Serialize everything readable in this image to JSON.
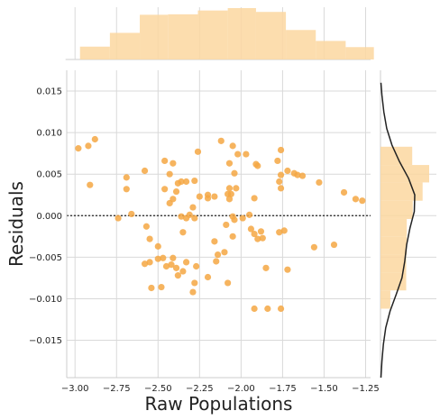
{
  "chart_data": {
    "type": "scatter",
    "title": "",
    "xlabel": "Raw Populations",
    "ylabel": "Residuals",
    "xlim": [
      -3.05,
      -1.22
    ],
    "ylim": [
      -0.0195,
      0.0175
    ],
    "xticks": [
      -3.0,
      -2.75,
      -2.5,
      -2.25,
      -2.0,
      -1.75,
      -1.5,
      -1.25
    ],
    "xtick_labels": [
      "−3.00",
      "−2.75",
      "−2.50",
      "−2.25",
      "−2.00",
      "−1.75",
      "−1.50",
      "−1.25"
    ],
    "yticks": [
      -0.015,
      -0.01,
      -0.005,
      0.0,
      0.005,
      0.01,
      0.015
    ],
    "ytick_labels": [
      "−0.015",
      "−0.010",
      "−0.005",
      "0.000",
      "0.005",
      "0.010",
      "0.015"
    ],
    "grid": true,
    "reference_line": {
      "y": 0.0,
      "style": "dotted"
    },
    "points": [
      [
        -2.98,
        0.0081
      ],
      [
        -2.92,
        0.0084
      ],
      [
        -2.88,
        0.0092
      ],
      [
        -2.91,
        0.0037
      ],
      [
        -2.74,
        -0.0003
      ],
      [
        -2.69,
        0.0046
      ],
      [
        -2.69,
        0.0032
      ],
      [
        -2.66,
        0.0002
      ],
      [
        -2.58,
        0.0054
      ],
      [
        -2.57,
        -0.0013
      ],
      [
        -2.55,
        -0.0028
      ],
      [
        -2.5,
        -0.0037
      ],
      [
        -2.46,
        0.0066
      ],
      [
        -2.43,
        0.005
      ],
      [
        -2.41,
        0.0063
      ],
      [
        -2.38,
        0.0039
      ],
      [
        -2.46,
        0.0032
      ],
      [
        -2.43,
        0.0015
      ],
      [
        -2.41,
        0.002
      ],
      [
        -2.39,
        0.0029
      ],
      [
        -2.36,
        0.0041
      ],
      [
        -2.33,
        0.0041
      ],
      [
        -2.28,
        0.0042
      ],
      [
        -2.36,
        -0.0001
      ],
      [
        -2.33,
        -0.0003
      ],
      [
        -2.31,
        0.0001
      ],
      [
        -2.29,
        0.001
      ],
      [
        -2.28,
        -0.0003
      ],
      [
        -2.26,
        0.0077
      ],
      [
        -2.25,
        0.0023
      ],
      [
        -2.2,
        0.0025
      ],
      [
        -2.2,
        0.0021
      ],
      [
        -2.16,
        0.0023
      ],
      [
        -2.12,
        0.009
      ],
      [
        -2.08,
        0.0026
      ],
      [
        -2.07,
        0.0033
      ],
      [
        -2.07,
        0.002
      ],
      [
        -2.06,
        0.0026
      ],
      [
        -2.03,
        0.0033
      ],
      [
        -2.05,
        0.0084
      ],
      [
        -2.02,
        0.0074
      ],
      [
        -2.04,
        0.0051
      ],
      [
        -2.07,
        0.0063
      ],
      [
        -1.97,
        0.0074
      ],
      [
        -1.91,
        0.0062
      ],
      [
        -1.9,
        0.006
      ],
      [
        -1.92,
        0.0021
      ],
      [
        -2.04,
        -0.0005
      ],
      [
        -2.05,
        -0.0001
      ],
      [
        -1.99,
        -0.0003
      ],
      [
        -1.95,
        0.0001
      ],
      [
        -1.94,
        -0.0016
      ],
      [
        -1.92,
        -0.0022
      ],
      [
        -1.9,
        -0.0028
      ],
      [
        -1.87,
        -0.0027
      ],
      [
        -1.88,
        -0.0019
      ],
      [
        -2.58,
        -0.0058
      ],
      [
        -2.55,
        -0.0056
      ],
      [
        -2.5,
        -0.0052
      ],
      [
        -2.47,
        -0.0051
      ],
      [
        -2.42,
        -0.0059
      ],
      [
        -2.39,
        -0.0063
      ],
      [
        -2.35,
        -0.0067
      ],
      [
        -2.33,
        -0.0056
      ],
      [
        -2.27,
        -0.0061
      ],
      [
        -2.2,
        -0.0074
      ],
      [
        -2.16,
        -0.0031
      ],
      [
        -2.14,
        -0.0047
      ],
      [
        -2.15,
        -0.0055
      ],
      [
        -2.1,
        -0.0044
      ],
      [
        -2.05,
        -0.0025
      ],
      [
        -2.09,
        -0.0011
      ],
      [
        -2.08,
        -0.0081
      ],
      [
        -2.28,
        -0.0081
      ],
      [
        -2.29,
        -0.0092
      ],
      [
        -2.45,
        -0.0061
      ],
      [
        -2.54,
        -0.0087
      ],
      [
        -2.48,
        -0.0086
      ],
      [
        -2.41,
        -0.0051
      ],
      [
        -2.38,
        -0.0072
      ],
      [
        -2.35,
        -0.002
      ],
      [
        -1.85,
        -0.0063
      ],
      [
        -1.77,
        -0.002
      ],
      [
        -1.74,
        -0.0018
      ],
      [
        -1.72,
        -0.0065
      ],
      [
        -1.92,
        -0.0112
      ],
      [
        -1.84,
        -0.0112
      ],
      [
        -1.76,
        -0.0112
      ],
      [
        -1.78,
        0.0066
      ],
      [
        -1.76,
        0.0079
      ],
      [
        -1.72,
        0.0054
      ],
      [
        -1.68,
        0.0051
      ],
      [
        -1.66,
        0.0049
      ],
      [
        -1.63,
        0.0048
      ],
      [
        -1.76,
        0.0049
      ],
      [
        -1.77,
        0.0041
      ],
      [
        -1.76,
        0.0033
      ],
      [
        -1.53,
        0.004
      ],
      [
        -1.38,
        0.0028
      ],
      [
        -1.31,
        0.002
      ],
      [
        -1.27,
        0.0018
      ],
      [
        -1.56,
        -0.0038
      ],
      [
        -1.44,
        -0.0035
      ]
    ],
    "marginal_x_hist": {
      "bin_edges": [
        -2.97,
        -2.79,
        -2.61,
        -2.44,
        -2.26,
        -2.08,
        -1.91,
        -1.73,
        -1.55,
        -1.37,
        -1.2
      ],
      "density": [
        0.27,
        0.56,
        0.94,
        0.95,
        1.03,
        1.08,
        1.0,
        0.62,
        0.39,
        0.26
      ]
    },
    "marginal_y_hist": {
      "bin_edges": [
        -0.0112,
        -0.009,
        -0.0069,
        -0.0047,
        -0.0025,
        -0.0004,
        0.0018,
        0.004,
        0.0061,
        0.0083,
        0.0105
      ],
      "density": [
        18,
        47,
        47,
        48,
        48,
        59,
        77,
        89,
        58,
        0
      ]
    },
    "kde_y": {
      "y": [
        -0.0195,
        -0.0175,
        -0.0155,
        -0.0135,
        -0.0115,
        -0.0095,
        -0.0075,
        -0.0055,
        -0.0035,
        -0.0015,
        0.0005,
        0.0025,
        0.0045,
        0.0065,
        0.0085,
        0.0105,
        0.0125,
        0.0145,
        0.016
      ],
      "density": [
        1,
        3,
        6,
        11,
        20,
        33,
        45,
        51,
        55,
        62,
        71,
        72,
        59,
        40,
        24,
        13,
        7,
        3,
        1
      ]
    },
    "colors": {
      "points": "#f5a743",
      "histogram": "#fbd7a0",
      "kde": "#222222",
      "grid": "#d9d9d9",
      "reference_line": "#222222"
    }
  }
}
